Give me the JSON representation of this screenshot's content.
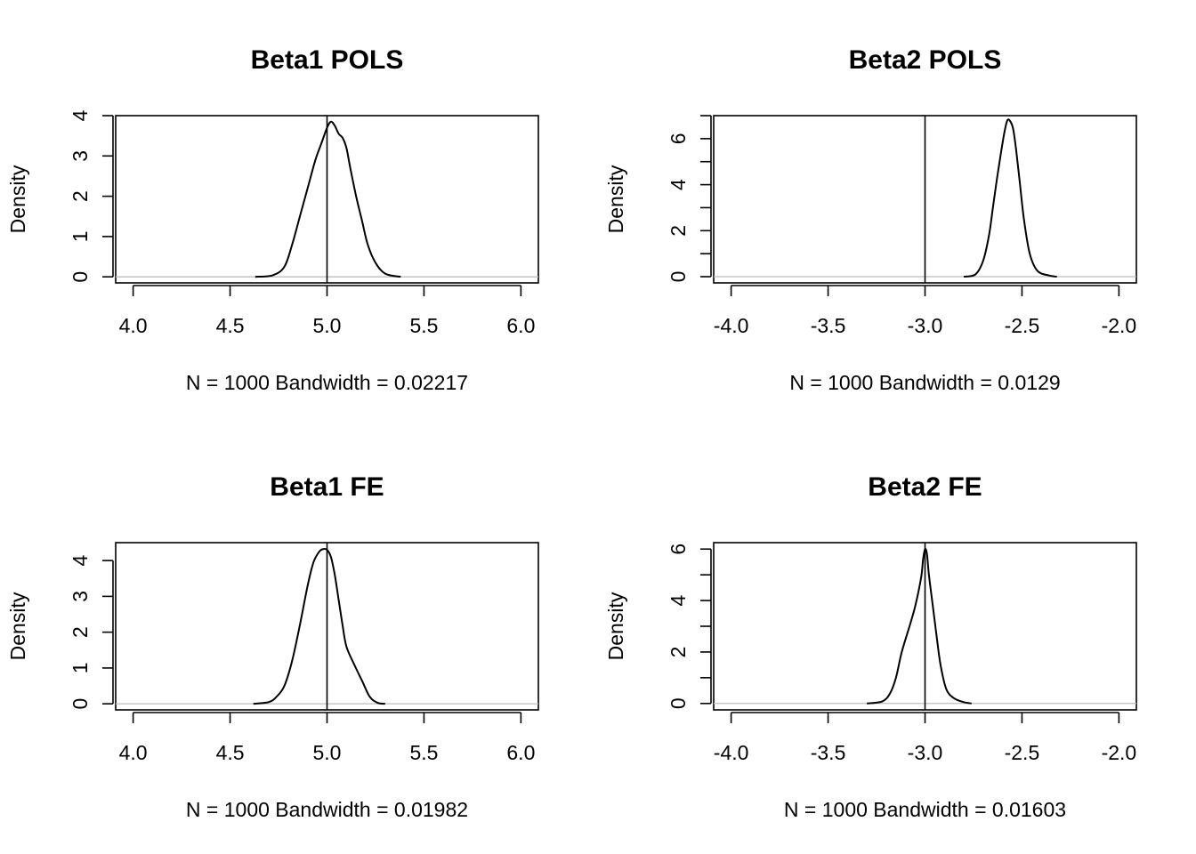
{
  "chart_data": [
    {
      "type": "line",
      "title": "Beta1 POLS",
      "ylabel": "Density",
      "subtitle": "N = 1000   Bandwidth = 0.02217",
      "xlim": [
        3.91,
        6.09
      ],
      "ylim": [
        -0.15,
        4.0
      ],
      "xticks": [
        4.0,
        4.5,
        5.0,
        5.5,
        6.0
      ],
      "xtick_labels": [
        "4.0",
        "4.5",
        "5.0",
        "5.5",
        "6.0"
      ],
      "yticks": [
        0,
        1,
        2,
        3,
        4
      ],
      "ytick_labels": [
        "0",
        "1",
        "2",
        "3",
        "4"
      ],
      "yminor": [],
      "vline": 5.0,
      "x": [
        4.63,
        4.72,
        4.78,
        4.82,
        4.86,
        4.9,
        4.94,
        4.97,
        5.0,
        5.02,
        5.04,
        5.06,
        5.08,
        5.1,
        5.12,
        5.15,
        5.18,
        5.21,
        5.25,
        5.3,
        5.38
      ],
      "y": [
        0.0,
        0.04,
        0.25,
        0.8,
        1.5,
        2.2,
        2.9,
        3.3,
        3.7,
        3.85,
        3.75,
        3.55,
        3.45,
        3.2,
        2.7,
        2.0,
        1.4,
        0.8,
        0.35,
        0.08,
        0.0
      ]
    },
    {
      "type": "line",
      "title": "Beta2 POLS",
      "ylabel": "Density",
      "subtitle": "N = 1000   Bandwidth = 0.0129",
      "xlim": [
        -4.09,
        -1.91
      ],
      "ylim": [
        -0.27,
        7.0
      ],
      "xticks": [
        -4.0,
        -3.5,
        -3.0,
        -2.5,
        -2.0
      ],
      "xtick_labels": [
        "-4.0",
        "-3.5",
        "-3.0",
        "-2.5",
        "-2.0"
      ],
      "yticks": [
        0,
        2,
        4,
        6
      ],
      "ytick_labels": [
        "0",
        "2",
        "4",
        "6"
      ],
      "yminor": [
        1,
        3,
        5,
        7
      ],
      "vline": -3.0,
      "x": [
        -2.8,
        -2.74,
        -2.7,
        -2.67,
        -2.65,
        -2.63,
        -2.61,
        -2.59,
        -2.575,
        -2.56,
        -2.545,
        -2.53,
        -2.51,
        -2.49,
        -2.46,
        -2.42,
        -2.36,
        -2.32
      ],
      "y": [
        0.0,
        0.1,
        0.7,
        1.8,
        3.0,
        4.2,
        5.3,
        6.3,
        6.8,
        6.75,
        6.4,
        5.5,
        4.0,
        2.5,
        1.0,
        0.25,
        0.05,
        0.0
      ]
    },
    {
      "type": "line",
      "title": "Beta1 FE",
      "ylabel": "Density",
      "subtitle": "N = 1000   Bandwidth = 0.01982",
      "xlim": [
        3.91,
        6.09
      ],
      "ylim": [
        -0.17,
        4.5
      ],
      "xticks": [
        4.0,
        4.5,
        5.0,
        5.5,
        6.0
      ],
      "xtick_labels": [
        "4.0",
        "4.5",
        "5.0",
        "5.5",
        "6.0"
      ],
      "yticks": [
        0,
        1,
        2,
        3,
        4
      ],
      "ytick_labels": [
        "0",
        "1",
        "2",
        "3",
        "4"
      ],
      "yminor": [],
      "vline": 5.0,
      "x": [
        4.62,
        4.7,
        4.74,
        4.78,
        4.82,
        4.86,
        4.9,
        4.93,
        4.96,
        4.98,
        5.0,
        5.02,
        5.04,
        5.06,
        5.08,
        5.1,
        5.14,
        5.18,
        5.22,
        5.26,
        5.3
      ],
      "y": [
        0.0,
        0.05,
        0.2,
        0.5,
        1.2,
        2.2,
        3.3,
        3.95,
        4.25,
        4.32,
        4.3,
        4.1,
        3.6,
        2.9,
        2.2,
        1.6,
        1.1,
        0.65,
        0.2,
        0.03,
        0.0
      ]
    },
    {
      "type": "line",
      "title": "Beta2 FE",
      "ylabel": "Density",
      "subtitle": "N = 1000   Bandwidth = 0.01603",
      "xlim": [
        -4.09,
        -1.91
      ],
      "ylim": [
        -0.25,
        6.25
      ],
      "xticks": [
        -4.0,
        -3.5,
        -3.0,
        -2.5,
        -2.0
      ],
      "xtick_labels": [
        "-4.0",
        "-3.5",
        "-3.0",
        "-2.5",
        "-2.0"
      ],
      "yticks": [
        0,
        2,
        4,
        6
      ],
      "ytick_labels": [
        "0",
        "2",
        "4",
        "6"
      ],
      "yminor": [
        1,
        3,
        5
      ],
      "vline": -3.0,
      "x": [
        -3.3,
        -3.22,
        -3.18,
        -3.15,
        -3.12,
        -3.08,
        -3.05,
        -3.02,
        -3.01,
        -3.0,
        -2.99,
        -2.98,
        -2.96,
        -2.94,
        -2.92,
        -2.89,
        -2.85,
        -2.8,
        -2.76
      ],
      "y": [
        0.0,
        0.08,
        0.4,
        1.0,
        2.0,
        3.0,
        3.8,
        4.9,
        5.6,
        6.0,
        5.8,
        5.0,
        3.8,
        2.6,
        1.5,
        0.55,
        0.2,
        0.05,
        0.0
      ]
    }
  ]
}
